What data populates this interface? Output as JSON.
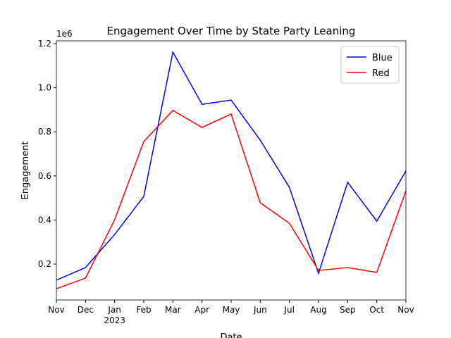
{
  "chart_data": {
    "type": "line",
    "title": "Engagement Over Time by State Party Leaning",
    "x_label": "Date",
    "y_label": "Engagement",
    "y_offset_label": "1e6",
    "categories": [
      "Nov",
      "Dec",
      "Jan 2023",
      "Feb",
      "Mar",
      "Apr",
      "May",
      "Jun",
      "Jul",
      "Aug",
      "Sep",
      "Oct",
      "Nov"
    ],
    "series": [
      {
        "name": "Blue",
        "color": "#0000ff",
        "values": [
          127000,
          184000,
          334000,
          507000,
          1162000,
          925000,
          944000,
          762000,
          548000,
          158000,
          571000,
          395000,
          622000
        ]
      },
      {
        "name": "Red",
        "color": "#ff0000",
        "values": [
          88000,
          136000,
          401000,
          756000,
          897000,
          820000,
          881000,
          478000,
          385000,
          171000,
          184000,
          162000,
          532000
        ]
      }
    ],
    "ylim": [
      37000,
      1213000
    ],
    "yticks": [
      {
        "value": 200000,
        "label": "0.2"
      },
      {
        "value": 400000,
        "label": "0.4"
      },
      {
        "value": 600000,
        "label": "0.6"
      },
      {
        "value": 800000,
        "label": "0.8"
      },
      {
        "value": 1000000,
        "label": "1.0"
      },
      {
        "value": 1200000,
        "label": "1.2"
      }
    ],
    "legend": "upper right",
    "grid": false
  }
}
